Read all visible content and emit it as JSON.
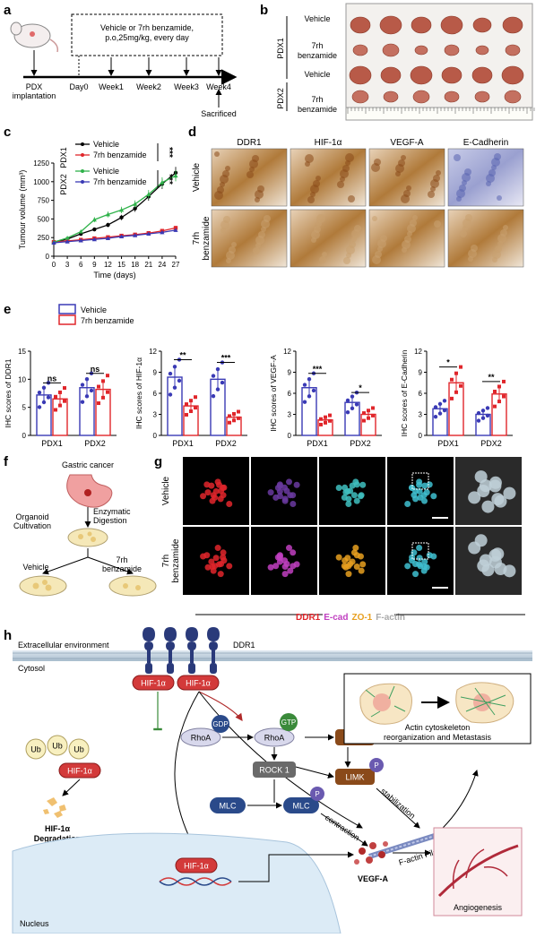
{
  "panel_letters": {
    "a": "a",
    "b": "b",
    "c": "c",
    "d": "d",
    "e": "e",
    "f": "f",
    "g": "g",
    "h": "h"
  },
  "a": {
    "treatment_line1": "Vehicle or 7rh benzamide,",
    "treatment_line2": "p.o,25mg/kg, every day",
    "pdx1": "PDX",
    "pdx2": "implantation",
    "timeline": [
      "Day0",
      "Week1",
      "Week2",
      "Week3",
      "Week4"
    ],
    "sacrificed": "Sacrificed"
  },
  "b": {
    "group_pdx1": "PDX1",
    "group_pdx2": "PDX2",
    "rows": [
      "Vehicle",
      "7rh\nbenzamide",
      "Vehicle",
      "7rh\nbenzamide"
    ]
  },
  "c": {
    "ylabel": "Tumour volume (mm³)",
    "xlabel": "Time (days)",
    "sig": "***",
    "legend_group1": "PDX1",
    "legend_group2": "PDX2",
    "legend": [
      "Vehicle",
      "7rh benzamide",
      "Vehicle",
      "7rh benzamide"
    ]
  },
  "chart_data": [
    {
      "type": "line",
      "xlabel": "Time (days)",
      "ylabel": "Tumour volume (mm³)",
      "x": [
        0,
        3,
        6,
        9,
        12,
        15,
        18,
        21,
        24,
        27
      ],
      "xlim": [
        0,
        27
      ],
      "ylim": [
        0,
        1250
      ],
      "yticks": [
        0,
        250,
        500,
        750,
        1000,
        1250
      ],
      "series": [
        {
          "name": "Vehicle",
          "group": "PDX1",
          "color": "#000000",
          "values": [
            190,
            230,
            300,
            360,
            420,
            520,
            640,
            800,
            970,
            1120
          ]
        },
        {
          "name": "7rh benzamide",
          "group": "PDX1",
          "color": "#e0262b",
          "values": [
            190,
            205,
            220,
            240,
            255,
            275,
            290,
            310,
            340,
            380
          ]
        },
        {
          "name": "Vehicle",
          "group": "PDX2",
          "color": "#2fb24a",
          "values": [
            190,
            245,
            330,
            490,
            560,
            620,
            700,
            830,
            990,
            1080
          ]
        },
        {
          "name": "7rh benzamide",
          "group": "PDX2",
          "color": "#3a3ab5",
          "values": [
            180,
            195,
            210,
            225,
            240,
            265,
            280,
            300,
            320,
            350
          ]
        }
      ]
    },
    {
      "type": "bar",
      "ylabel": "IHC scores of DDR1",
      "categories": [
        "PDX1",
        "PDX2"
      ],
      "ylim": [
        0,
        15
      ],
      "yticks": [
        0,
        5,
        10,
        15
      ],
      "series": [
        {
          "name": "Vehicle",
          "values": [
            7.2,
            8.5
          ]
        },
        {
          "name": "7rh benzamide",
          "values": [
            6.5,
            8.2
          ]
        }
      ],
      "annotations": [
        "ns",
        "ns"
      ]
    },
    {
      "type": "bar",
      "ylabel": "IHC scores of HIF-1α",
      "categories": [
        "PDX1",
        "PDX2"
      ],
      "ylim": [
        0,
        12
      ],
      "yticks": [
        0,
        3,
        6,
        9,
        12
      ],
      "series": [
        {
          "name": "Vehicle",
          "values": [
            8.3,
            8.0
          ]
        },
        {
          "name": "7rh benzamide",
          "values": [
            4.2,
            2.6
          ]
        }
      ],
      "annotations": [
        "**",
        "***"
      ]
    },
    {
      "type": "bar",
      "ylabel": "IHC scores of VEGF-A",
      "categories": [
        "PDX1",
        "PDX2"
      ],
      "ylim": [
        0,
        12
      ],
      "yticks": [
        0,
        3,
        6,
        9,
        12
      ],
      "series": [
        {
          "name": "Vehicle",
          "values": [
            6.8,
            4.7
          ]
        },
        {
          "name": "7rh benzamide",
          "values": [
            2.2,
            3.0
          ]
        }
      ],
      "annotations": [
        "***",
        "*"
      ]
    },
    {
      "type": "bar",
      "ylabel": "IHC scores of E-Cadherin",
      "categories": [
        "PDX1",
        "PDX2"
      ],
      "ylim": [
        0,
        12
      ],
      "yticks": [
        0,
        3,
        6,
        9,
        12
      ],
      "series": [
        {
          "name": "Vehicle",
          "values": [
            3.8,
            3.0
          ]
        },
        {
          "name": "7rh benzamide",
          "values": [
            7.5,
            5.9
          ]
        }
      ],
      "annotations": [
        "*",
        "**"
      ]
    }
  ],
  "d": {
    "cols": [
      "DDR1",
      "HIF-1α",
      "VEGF-A",
      "E-Cadherin"
    ],
    "rows": [
      "Vehicle",
      "7rh\nbenzamide"
    ]
  },
  "e": {
    "legend": [
      "Vehicle",
      "7rh benzamide"
    ]
  },
  "f": {
    "gastric": "Gastric cancer",
    "enzymatic": "Enzymatic",
    "digestion": "Digestion",
    "organoid1": "Organoid",
    "organoid2": "Cultivation",
    "vehicle": "Vehicle",
    "drug1": "7rh",
    "drug2": "benzamide"
  },
  "g": {
    "rows": [
      "Vehicle",
      "7rh\nbenzamide"
    ],
    "stain_labels": [
      "DDR1",
      "E-cad",
      "ZO-1",
      "F-actin"
    ],
    "stain_colors": [
      "#e0262b",
      "#c040c0",
      "#e8a020",
      "#aaaaaa"
    ]
  },
  "h": {
    "extracellular": "Extracellular   environment",
    "ddr1": "DDR1",
    "cytosol": "Cytosol",
    "hif": "HIF-1α",
    "ub": "Ub",
    "degradation1": "HIF-1α",
    "degradation2": "Degradation",
    "gdp": "GDP",
    "gtp": "GTP",
    "rhoa": "RhoA",
    "rock": "ROCK 1",
    "limk": "LIMK",
    "p": "P",
    "mlc": "MLC",
    "stabilization": "stabilization",
    "contraction": "contraction",
    "factin": "F-actin Filament",
    "vegf": "VEGF-A",
    "angiogenesis": "Angiogenesis",
    "nucleus": "Nucleus",
    "actin1": "Actin cytoskeleton",
    "actin2": "reorganization and Metastasis"
  }
}
